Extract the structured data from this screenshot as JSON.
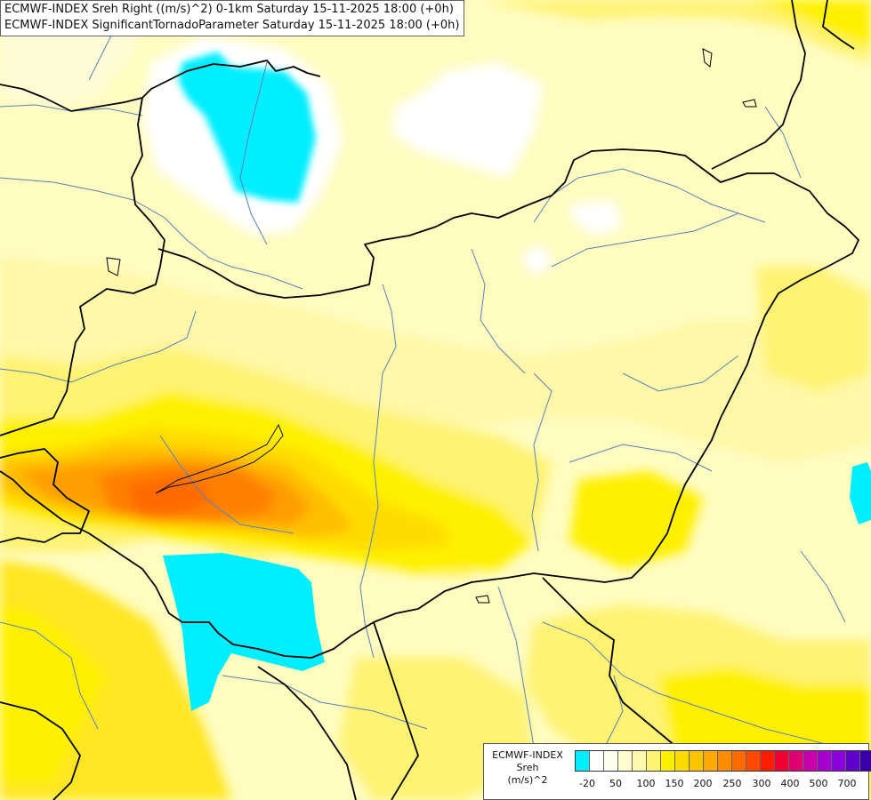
{
  "header": {
    "line1": "ECMWF-INDEX Sreh Right ((m/s)^2) 0-1km Saturday 15-11-2025 18:00 (+0h)",
    "line2": "ECMWF-INDEX SignificantTornadoParameter Saturday 15-11-2025 18:00 (+0h)"
  },
  "legend": {
    "line1": "ECMWF-INDEX",
    "line2": "Sreh",
    "line3": "(m/s)^2",
    "labels": [
      "-20",
      "50",
      "100",
      "150",
      "200",
      "250",
      "300",
      "400",
      "500",
      "700"
    ],
    "colors": [
      "#00eeff",
      "#ffffff",
      "#fffff0",
      "#fffcd2",
      "#fff8b0",
      "#fff373",
      "#fff000",
      "#ffdc00",
      "#ffc400",
      "#ffa800",
      "#ff8c00",
      "#ff6a00",
      "#ff4a00",
      "#ff1f00",
      "#ee0030",
      "#dd0070",
      "#c800a8",
      "#a800cc",
      "#8a00dd",
      "#6000cc",
      "#3a00aa",
      "#140088"
    ]
  }
}
